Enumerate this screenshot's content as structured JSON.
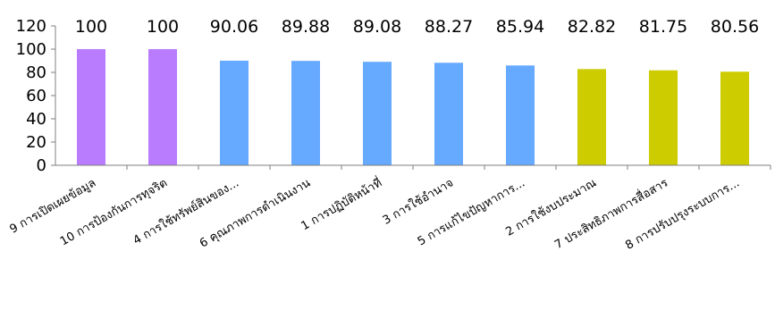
{
  "chart_data": {
    "type": "bar",
    "title": "",
    "xlabel": "",
    "ylabel": "",
    "ylim": [
      0,
      120
    ],
    "yticks": [
      "0",
      "20",
      "40",
      "60",
      "80",
      "100",
      "120"
    ],
    "grid": false,
    "legend": "none",
    "categories": [
      "9 การเปิดเผยข้อมูล",
      "10 การป้องกันการทุจริต",
      "4 การใช้ทรัพย์สินของ...",
      "6 คุณภาพการดำเนินงาน",
      "1 การปฏิบัติหน้าที่",
      "3 การใช้อำนาจ",
      "5 การแก้ไขปัญหาการ...",
      "2 การใช้งบประมาณ",
      "7 ประสิทธิภาพการสื่อสาร",
      "8 การปรับปรุงระบบการ..."
    ],
    "values": [
      100,
      100,
      90.06,
      89.88,
      89.08,
      88.27,
      85.94,
      82.82,
      81.75,
      80.56
    ],
    "value_labels": [
      "100",
      "100",
      "90.06",
      "89.88",
      "89.08",
      "88.27",
      "85.94",
      "82.82",
      "81.75",
      "80.56"
    ],
    "bar_colors": [
      "#b97cff",
      "#b97cff",
      "#66aaff",
      "#66aaff",
      "#66aaff",
      "#66aaff",
      "#66aaff",
      "#cccc00",
      "#cccc00",
      "#cccc00"
    ],
    "axis_color": "#7f7f7f"
  }
}
